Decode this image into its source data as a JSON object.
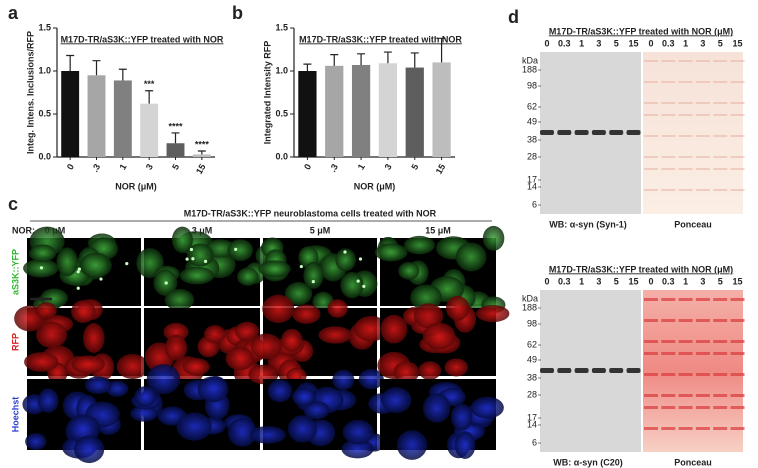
{
  "chart_data": [
    {
      "type": "bar",
      "panel": "a",
      "title": "M17D-TR/aS3K::YFP treated with NOR",
      "y_label": "Integ. Intens. Inclusions/RFP",
      "x_label": "NOR (μM)",
      "categories": [
        "0",
        ".3",
        "1",
        "3",
        "5",
        "15"
      ],
      "values": [
        1.0,
        0.95,
        0.89,
        0.62,
        0.16,
        0.03
      ],
      "errors": [
        0.18,
        0.17,
        0.13,
        0.15,
        0.12,
        0.04
      ],
      "significance": [
        null,
        null,
        null,
        "***",
        "****",
        "****"
      ],
      "colors": [
        "#111111",
        "#a6a6a6",
        "#808080",
        "#d4d4d4",
        "#5e5e5e",
        "#bdbdbd"
      ],
      "ylim": [
        0,
        1.5
      ],
      "yticks": [
        {
          "value": 0,
          "label": "0.0"
        },
        0.5,
        {
          "value": 1,
          "label": "1.0"
        },
        1.5
      ]
    },
    {
      "type": "bar",
      "panel": "b",
      "title": "M17D-TR/aS3K::YFP treated with NOR",
      "y_label": "Integrated Intensity RFP",
      "x_label": "NOR (μM)",
      "categories": [
        "0",
        ".3",
        "1",
        "3",
        "5",
        "15"
      ],
      "values": [
        1.0,
        1.06,
        1.07,
        1.09,
        1.04,
        1.1
      ],
      "errors": [
        0.08,
        0.13,
        0.13,
        0.13,
        0.17,
        0.28
      ],
      "colors": [
        "#111111",
        "#a6a6a6",
        "#808080",
        "#d4d4d4",
        "#5e5e5e",
        "#bdbdbd"
      ],
      "ylim": [
        0,
        1.5
      ],
      "yticks": [
        {
          "value": 0,
          "label": "0.0"
        },
        0.5,
        {
          "value": 1,
          "label": "1.0"
        },
        1.5
      ]
    }
  ],
  "imaging": {
    "panel": "c",
    "title": "M17D-TR/aS3K::YFP neuroblastoma cells treated with NOR",
    "row_header": "NOR:",
    "columns": [
      "0 μM",
      "3 μM",
      "5 μM",
      "15 μM"
    ],
    "rows": [
      "aS3K::YFP",
      "RFP",
      "Hoechst"
    ]
  },
  "blots": {
    "panel": "d",
    "items": [
      {
        "title": "M17D-TR/aS3K::YFP treated with NOR (μM)",
        "lanes": [
          "0",
          "0.3",
          "1",
          "3",
          "5",
          "15"
        ],
        "unit": "kDa",
        "markers": [
          "188",
          "98",
          "62",
          "49",
          "38",
          "28",
          "17",
          "14",
          "6"
        ],
        "wb_caption": "WB: α-syn (Syn-1)",
        "stain_caption": "Ponceau"
      },
      {
        "title": "M17D-TR/aS3K::YFP treated with NOR (μM)",
        "lanes": [
          "0",
          "0.3",
          "1",
          "3",
          "5",
          "15"
        ],
        "unit": "kDa",
        "markers": [
          "188",
          "98",
          "62",
          "49",
          "38",
          "28",
          "17",
          "14",
          "6"
        ],
        "wb_caption": "WB: α-syn (C20)",
        "stain_caption": "Ponceau"
      }
    ]
  }
}
